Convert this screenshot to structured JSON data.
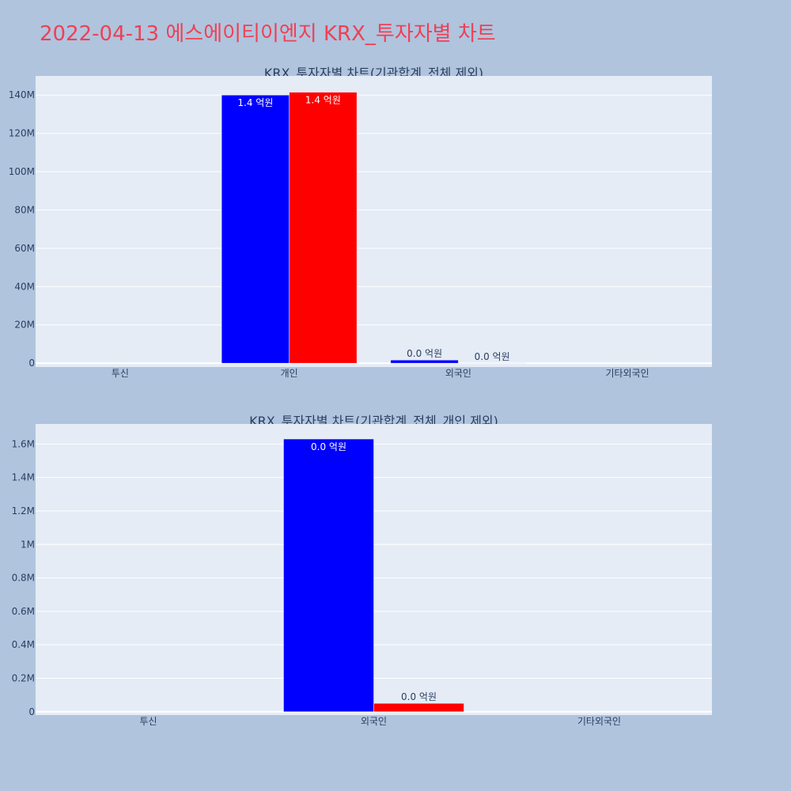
{
  "title": "2022-04-13 에스에이티이엔지 KRX_투자자별 차트",
  "chart_data": [
    {
      "type": "bar",
      "title": "KRX_투자자별 차트(기관합계_전체 제외)",
      "categories": [
        "투신",
        "개인",
        "외국인",
        "기타외국인"
      ],
      "series": [
        {
          "color": "#0000ff",
          "values": [
            0,
            140000000,
            1630000,
            0
          ],
          "labels": [
            "",
            "1.4 억원",
            "0.0 억원",
            ""
          ]
        },
        {
          "color": "#ff0000",
          "values": [
            0,
            141500000,
            50000,
            0
          ],
          "labels": [
            "",
            "1.4 억원",
            "0.0 억원",
            ""
          ]
        }
      ],
      "ylim": [
        -2000000,
        150000000
      ],
      "yticks": [
        0,
        20000000,
        40000000,
        60000000,
        80000000,
        100000000,
        120000000,
        140000000
      ],
      "ytick_labels": [
        "0",
        "20M",
        "40M",
        "60M",
        "80M",
        "100M",
        "120M",
        "140M"
      ],
      "plot_bg": "#e5ecf6",
      "grid": true
    },
    {
      "type": "bar",
      "title": "KRX_투자자별 차트(기관합계_전체_개인 제외)",
      "categories": [
        "투신",
        "외국인",
        "기타외국인"
      ],
      "series": [
        {
          "color": "#0000ff",
          "values": [
            0,
            1630000,
            0
          ],
          "labels": [
            "",
            "0.0 억원",
            ""
          ]
        },
        {
          "color": "#ff0000",
          "values": [
            0,
            50000,
            0
          ],
          "labels": [
            "",
            "0.0 억원",
            ""
          ]
        }
      ],
      "ylim": [
        -20000,
        1720000
      ],
      "yticks": [
        0,
        200000,
        400000,
        600000,
        800000,
        1000000,
        1200000,
        1400000,
        1600000
      ],
      "ytick_labels": [
        "0",
        "0.2M",
        "0.4M",
        "0.6M",
        "0.8M",
        "1M",
        "1.2M",
        "1.4M",
        "1.6M"
      ],
      "plot_bg": "#e5ecf6",
      "grid": true
    }
  ]
}
